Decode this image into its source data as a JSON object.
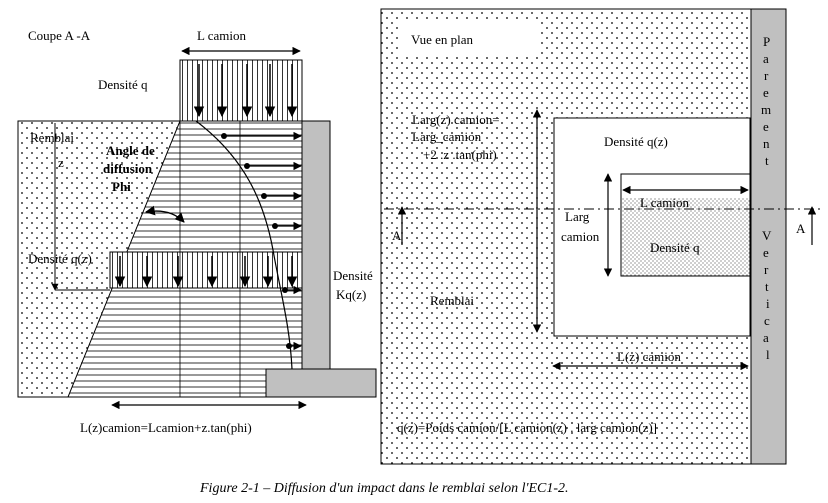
{
  "left_view": {
    "title": "Coupe A -A",
    "truck_length": "L camion",
    "density_top": "Densité q",
    "backfill": "Remblai",
    "depth_symbol": "z",
    "angle_label_1": "Angle de",
    "angle_label_2": "diffusion",
    "angle_label_3": "Phi",
    "density_depth": "Densité q(z)",
    "lateral_density_1": "Densité",
    "lateral_density_2": "Kq(z)",
    "spread_formula": "L(z)camion=Lcamion+z.tan(phi)"
  },
  "right_view": {
    "title": "Vue en plan",
    "width_formula_1": "Larg(z) camion=",
    "width_formula_2": "Larg_camion",
    "width_formula_3": "+2 .z .tan(phi)",
    "density_depth": "Densité q(z)",
    "truck_width_1": "Larg",
    "truck_width_2": "camion",
    "truck_length": "L camion",
    "density_top": "Densité q",
    "backfill": "Remblai",
    "spread_length": "L(z) camion",
    "section_marker": "A",
    "wall_letters": [
      "P",
      "a",
      "r",
      "e",
      "m",
      "e",
      "n",
      "t",
      "V",
      "e",
      "r",
      "t",
      "i",
      "c",
      "a",
      "l"
    ],
    "load_formula": "q(z)=Poids camion/[L camion(z) . larg camion(z)]"
  },
  "caption": "Figure 2-1 – Diffusion d'un impact dans le remblai selon l'EC1-2."
}
